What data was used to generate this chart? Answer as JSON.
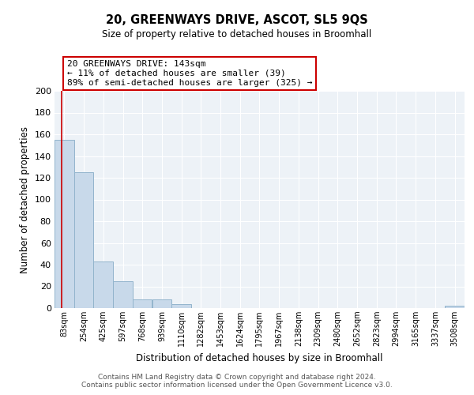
{
  "title": "20, GREENWAYS DRIVE, ASCOT, SL5 9QS",
  "subtitle": "Size of property relative to detached houses in Broomhall",
  "bar_labels": [
    "83sqm",
    "254sqm",
    "425sqm",
    "597sqm",
    "768sqm",
    "939sqm",
    "1110sqm",
    "1282sqm",
    "1453sqm",
    "1624sqm",
    "1795sqm",
    "1967sqm",
    "2138sqm",
    "2309sqm",
    "2480sqm",
    "2652sqm",
    "2823sqm",
    "2994sqm",
    "3165sqm",
    "3337sqm",
    "3508sqm"
  ],
  "bar_heights": [
    155,
    125,
    43,
    25,
    8,
    8,
    4,
    0,
    0,
    0,
    0,
    0,
    0,
    0,
    0,
    0,
    0,
    0,
    0,
    0,
    2
  ],
  "bar_color": "#c8d9ea",
  "bar_edgecolor": "#92b4cc",
  "property_line_x": 143,
  "bin_edges": [
    83,
    254,
    425,
    597,
    768,
    939,
    1110,
    1282,
    1453,
    1624,
    1795,
    1967,
    2138,
    2309,
    2480,
    2652,
    2823,
    2994,
    3165,
    3337,
    3508
  ],
  "bin_width": 171,
  "ylabel": "Number of detached properties",
  "xlabel": "Distribution of detached houses by size in Broomhall",
  "ylim": [
    0,
    200
  ],
  "yticks": [
    0,
    20,
    40,
    60,
    80,
    100,
    120,
    140,
    160,
    180,
    200
  ],
  "annotation_title": "20 GREENWAYS DRIVE: 143sqm",
  "annotation_line1": "← 11% of detached houses are smaller (39)",
  "annotation_line2": "89% of semi-detached houses are larger (325) →",
  "vline_color": "#cc0000",
  "annotation_box_edgecolor": "#cc0000",
  "background_color": "#ffffff",
  "plot_bg_color": "#edf2f7",
  "grid_color": "#ffffff",
  "footer1": "Contains HM Land Registry data © Crown copyright and database right 2024.",
  "footer2": "Contains public sector information licensed under the Open Government Licence v3.0."
}
